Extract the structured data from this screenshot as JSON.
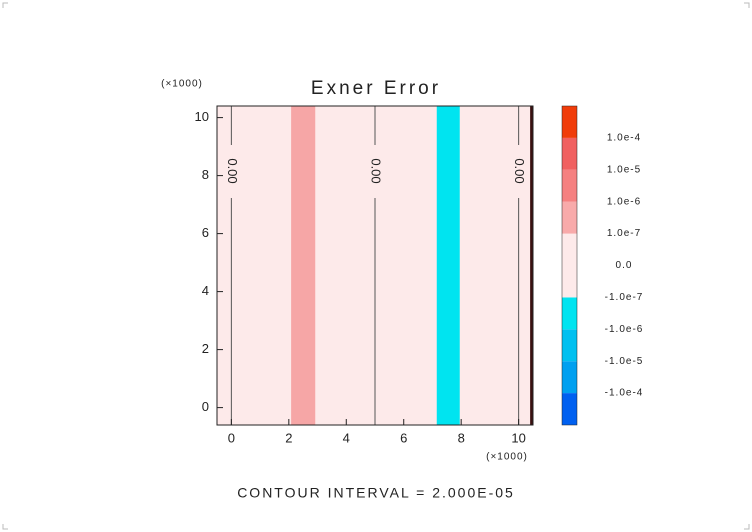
{
  "chart_data": {
    "type": "contour",
    "title": "Exner Error",
    "x_multiplier": "(×1000)",
    "y_multiplier": "(×1000)",
    "footer": "CONTOUR INTERVAL = 2.000E-05",
    "xlim": [
      -0.5,
      10.5
    ],
    "ylim": [
      -0.6,
      10.4
    ],
    "xticks": [
      0,
      2,
      4,
      6,
      8,
      10
    ],
    "yticks": [
      0,
      2,
      4,
      6,
      8,
      10
    ],
    "background": "#fdeaea",
    "regions": [
      {
        "x0": 2.08,
        "x1": 2.92,
        "color": "#f6a6a6"
      },
      {
        "x0": 7.15,
        "x1": 7.95,
        "color": "#00e4f0"
      },
      {
        "x0": 10.4,
        "x1": 10.5,
        "color": "#3a1010"
      }
    ],
    "contours": [
      {
        "x": 0,
        "label": "0.00"
      },
      {
        "x": 5,
        "label": "0.00"
      },
      {
        "x": 10,
        "label": "0.00"
      }
    ],
    "colorbar": {
      "colors": [
        "#0060f0",
        "#00a0f0",
        "#00c0f0",
        "#00e4f0",
        "#fdeaea",
        "#fdeaea",
        "#f8aaaa",
        "#f58080",
        "#f06060",
        "#f03c0a"
      ],
      "ticks": [
        {
          "value": -0.0001,
          "label": "-1.0e-4"
        },
        {
          "value": -1e-05,
          "label": "-1.0e-5"
        },
        {
          "value": -1e-06,
          "label": "-1.0e-6"
        },
        {
          "value": -1e-07,
          "label": "-1.0e-7"
        },
        {
          "value": 0,
          "label": "0.0"
        },
        {
          "value": 1e-07,
          "label": "1.0e-7"
        },
        {
          "value": 1e-06,
          "label": "1.0e-6"
        },
        {
          "value": 1e-05,
          "label": "1.0e-5"
        },
        {
          "value": 0.0001,
          "label": "1.0e-4"
        }
      ]
    }
  }
}
